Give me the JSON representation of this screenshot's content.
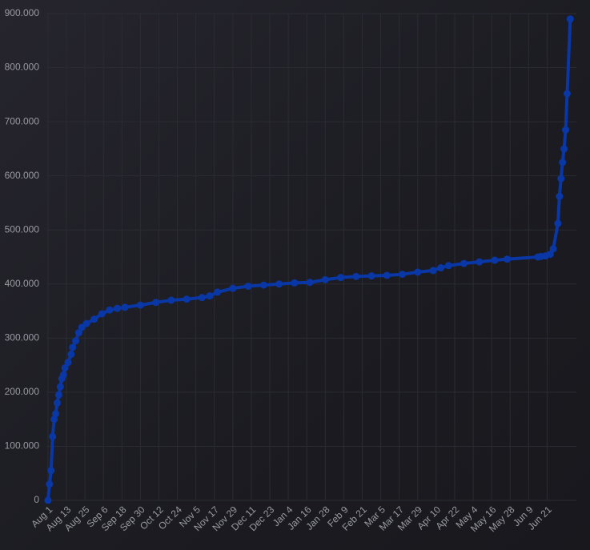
{
  "chart_data": {
    "type": "line",
    "color": "#0a37a6",
    "grid": true,
    "x": [
      0,
      1,
      2,
      3,
      4,
      5,
      6,
      7,
      8,
      9,
      10,
      11,
      13,
      15,
      16,
      18,
      20,
      22,
      25,
      30,
      35,
      40,
      45,
      50,
      60,
      70,
      80,
      90,
      100,
      105,
      110,
      120,
      130,
      140,
      150,
      160,
      170,
      180,
      190,
      200,
      210,
      220,
      230,
      240,
      250,
      255,
      260,
      270,
      280,
      290,
      298,
      318,
      320,
      323,
      326,
      328,
      331,
      332,
      333,
      334,
      335,
      336,
      337,
      339
    ],
    "values": [
      0,
      30000,
      55000,
      118000,
      150000,
      160000,
      180000,
      195000,
      210000,
      225000,
      232000,
      245000,
      255000,
      270000,
      283000,
      295000,
      310000,
      320000,
      327000,
      335000,
      345000,
      352000,
      355000,
      357000,
      361000,
      366000,
      370000,
      372000,
      375000,
      378000,
      385000,
      392000,
      396000,
      398000,
      400000,
      402000,
      403000,
      408000,
      412000,
      414000,
      415000,
      416000,
      418000,
      422000,
      425000,
      430000,
      434000,
      438000,
      441000,
      444000,
      446000,
      450000,
      451000,
      452000,
      455000,
      465000,
      512000,
      562000,
      595000,
      625000,
      650000,
      685000,
      752000,
      890000
    ],
    "xlim": [
      -1,
      343
    ],
    "xticks": [
      {
        "value": 0,
        "label": "Aug 1"
      },
      {
        "value": 12,
        "label": "Aug 13"
      },
      {
        "value": 24,
        "label": "Aug 25"
      },
      {
        "value": 36,
        "label": "Sep 6"
      },
      {
        "value": 48,
        "label": "Sep 18"
      },
      {
        "value": 60,
        "label": "Sep 30"
      },
      {
        "value": 72,
        "label": "Oct 12"
      },
      {
        "value": 84,
        "label": "Oct 24"
      },
      {
        "value": 96,
        "label": "Nov 5"
      },
      {
        "value": 108,
        "label": "Nov 17"
      },
      {
        "value": 120,
        "label": "Nov 29"
      },
      {
        "value": 132,
        "label": "Dec 11"
      },
      {
        "value": 144,
        "label": "Dec 23"
      },
      {
        "value": 156,
        "label": "Jan 4"
      },
      {
        "value": 168,
        "label": "Jan 16"
      },
      {
        "value": 180,
        "label": "Jan 28"
      },
      {
        "value": 192,
        "label": "Feb 9"
      },
      {
        "value": 204,
        "label": "Feb 21"
      },
      {
        "value": 216,
        "label": "Mar 5"
      },
      {
        "value": 228,
        "label": "Mar 17"
      },
      {
        "value": 240,
        "label": "Mar 29"
      },
      {
        "value": 252,
        "label": "Apr 10"
      },
      {
        "value": 264,
        "label": "Apr 22"
      },
      {
        "value": 276,
        "label": "May 4"
      },
      {
        "value": 288,
        "label": "May 16"
      },
      {
        "value": 300,
        "label": "May 28"
      },
      {
        "value": 312,
        "label": "Jun 9"
      },
      {
        "value": 324,
        "label": "Jun 21"
      }
    ],
    "ylim": [
      0,
      900000
    ],
    "yticks": [
      0,
      {
        "value": 100000,
        "label": "100.000"
      },
      {
        "value": 200000,
        "label": "200.000"
      },
      {
        "value": 300000,
        "label": "300.000"
      },
      {
        "value": 400000,
        "label": "400.000"
      },
      {
        "value": 500000,
        "label": "500.000"
      },
      {
        "value": 600000,
        "label": "600.000"
      },
      {
        "value": 700000,
        "label": "700.000"
      },
      {
        "value": 800000,
        "label": "800.000"
      },
      {
        "value": 900000,
        "label": "900.000"
      }
    ]
  }
}
